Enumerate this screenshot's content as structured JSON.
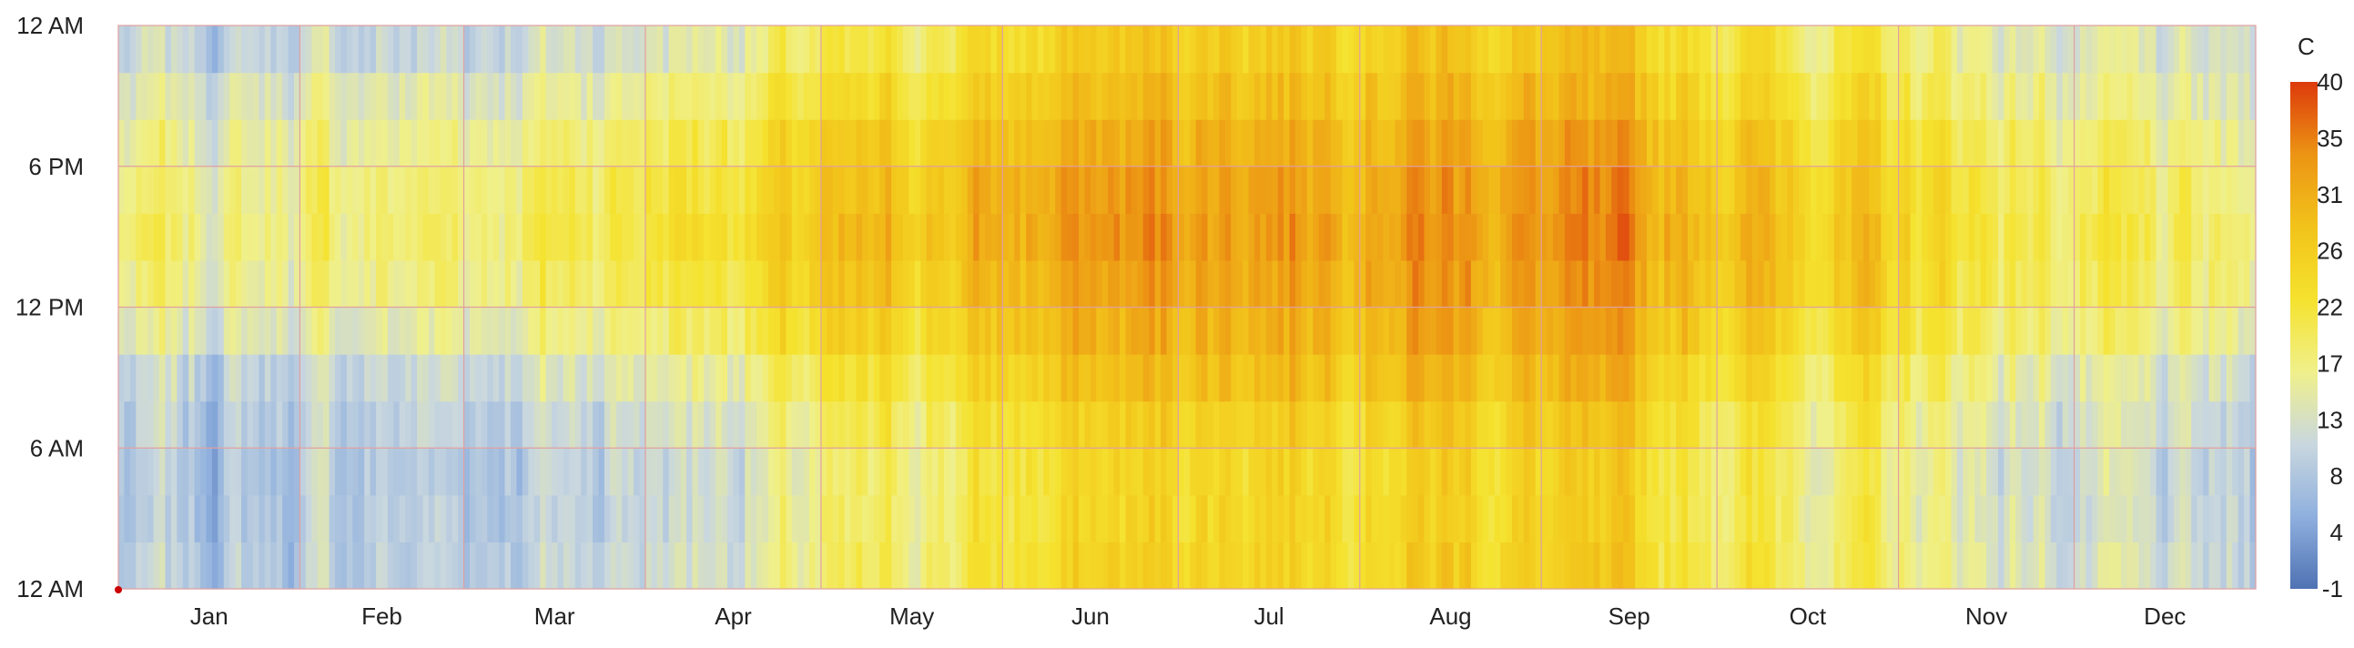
{
  "chart_data": {
    "type": "heatmap",
    "title": "",
    "xlabel": "",
    "ylabel": "",
    "x_tick_labels": [
      "Jan",
      "Feb",
      "Mar",
      "Apr",
      "May",
      "Jun",
      "Jul",
      "Aug",
      "Sep",
      "Oct",
      "Nov",
      "Dec"
    ],
    "y_tick_labels": [
      "12 AM",
      "6 AM",
      "12 PM",
      "6 PM",
      "12 AM"
    ],
    "y_range_hours": [
      0,
      24
    ],
    "x_range_days": [
      1,
      365
    ],
    "colorbar": {
      "unit_label": "C",
      "ticks": [
        40,
        35,
        31,
        26,
        22,
        17,
        13,
        8,
        4,
        -1
      ],
      "range": [
        -1,
        40
      ],
      "colors": [
        "#4f72b3",
        "#8fb0de",
        "#c9d7df",
        "#f0f08a",
        "#f5e22e",
        "#f2c31a",
        "#ec9414",
        "#dd3a0c"
      ]
    },
    "grid": true,
    "grid_color": "#e0a0a0",
    "monthly_hourly_mean_temp_c": {
      "hours": [
        0,
        3,
        6,
        9,
        12,
        15,
        18,
        21,
        24
      ],
      "months": {
        "Jan": [
          9,
          8,
          8,
          10,
          15,
          17,
          16,
          13,
          9
        ],
        "Feb": [
          9,
          9,
          9,
          11,
          16,
          18,
          17,
          14,
          9
        ],
        "Mar": [
          11,
          10,
          10,
          13,
          18,
          20,
          19,
          15,
          11
        ],
        "Apr": [
          14,
          13,
          13,
          17,
          22,
          24,
          23,
          19,
          14
        ],
        "May": [
          19,
          18,
          18,
          22,
          26,
          28,
          27,
          23,
          19
        ],
        "Jun": [
          25,
          24,
          24,
          28,
          31,
          33,
          32,
          28,
          25
        ],
        "Jul": [
          27,
          26,
          26,
          30,
          33,
          34,
          33,
          30,
          27
        ],
        "Aug": [
          27,
          26,
          26,
          30,
          33,
          34,
          33,
          30,
          27
        ],
        "Sep": [
          24,
          23,
          23,
          27,
          30,
          32,
          31,
          27,
          24
        ],
        "Oct": [
          20,
          19,
          19,
          22,
          27,
          28,
          27,
          23,
          20
        ],
        "Nov": [
          15,
          14,
          14,
          17,
          21,
          22,
          21,
          18,
          15
        ],
        "Dec": [
          10,
          9,
          9,
          11,
          16,
          17,
          16,
          13,
          10
        ]
      }
    }
  }
}
